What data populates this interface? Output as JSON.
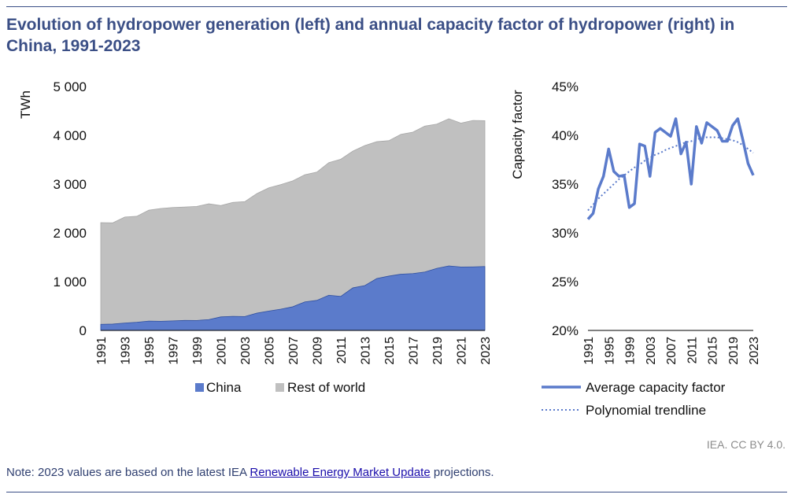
{
  "title": "Evolution of hydropower generation (left) and annual capacity factor of hydropower (right) in China, 1991-2023",
  "source": "IEA. CC BY 4.0.",
  "note": {
    "prefix": "Note: 2023 values are based on the latest IEA ",
    "link_text": "Renewable Energy Market Update",
    "suffix": " projections."
  },
  "colors": {
    "china": "#5b7bcb",
    "rest": "#c0c0c0",
    "line": "#5b7bcb",
    "title": "#3b4f86"
  },
  "chart_data": [
    {
      "type": "area",
      "stacked": true,
      "ylabel": "TWh",
      "ylim": [
        0,
        5000
      ],
      "yticks": [
        0,
        1000,
        2000,
        3000,
        4000,
        5000
      ],
      "ytick_labels": [
        "0",
        "1 000",
        "2 000",
        "3 000",
        "4 000",
        "5 000"
      ],
      "x": [
        1991,
        1992,
        1993,
        1994,
        1995,
        1996,
        1997,
        1998,
        1999,
        2000,
        2001,
        2002,
        2003,
        2004,
        2005,
        2006,
        2007,
        2008,
        2009,
        2010,
        2011,
        2012,
        2013,
        2014,
        2015,
        2016,
        2017,
        2018,
        2019,
        2020,
        2021,
        2022,
        2023
      ],
      "xtick_labels": [
        "1991",
        "1993",
        "1995",
        "1997",
        "1999",
        "2001",
        "2003",
        "2005",
        "2007",
        "2009",
        "2011",
        "2013",
        "2015",
        "2017",
        "2019",
        "2021",
        "2023"
      ],
      "legend": "bottom",
      "series": [
        {
          "name": "China",
          "values": [
            125,
            130,
            151,
            167,
            191,
            188,
            196,
            205,
            204,
            222,
            277,
            288,
            284,
            354,
            397,
            435,
            485,
            585,
            616,
            722,
            698,
            872,
            920,
            1064,
            1114,
            1153,
            1165,
            1198,
            1272,
            1322,
            1300,
            1303,
            1310
          ]
        },
        {
          "name": "Rest of world",
          "values": [
            2085,
            2075,
            2174,
            2173,
            2274,
            2312,
            2324,
            2325,
            2338,
            2374,
            2283,
            2337,
            2356,
            2451,
            2526,
            2555,
            2581,
            2606,
            2629,
            2718,
            2812,
            2803,
            2870,
            2806,
            2776,
            2867,
            2900,
            2992,
            2958,
            3018,
            2950,
            3002,
            2990
          ]
        }
      ]
    },
    {
      "type": "line",
      "ylabel": "Capacity factor",
      "ylim": [
        0.2,
        0.45
      ],
      "yticks": [
        0.2,
        0.25,
        0.3,
        0.35,
        0.4,
        0.45
      ],
      "ytick_labels": [
        "20%",
        "25%",
        "30%",
        "35%",
        "40%",
        "45%"
      ],
      "x": [
        1991,
        1992,
        1993,
        1994,
        1995,
        1996,
        1997,
        1998,
        1999,
        2000,
        2001,
        2002,
        2003,
        2004,
        2005,
        2006,
        2007,
        2008,
        2009,
        2010,
        2011,
        2012,
        2013,
        2014,
        2015,
        2016,
        2017,
        2018,
        2019,
        2020,
        2021,
        2022,
        2023
      ],
      "xtick_labels": [
        "1991",
        "1995",
        "1999",
        "2003",
        "2007",
        "2011",
        "2015",
        "2019",
        "2023"
      ],
      "legend": "bottom",
      "series": [
        {
          "name": "Average capacity factor",
          "style": "solid",
          "values": [
            0.314,
            0.32,
            0.345,
            0.358,
            0.386,
            0.363,
            0.358,
            0.359,
            0.326,
            0.33,
            0.391,
            0.389,
            0.358,
            0.403,
            0.407,
            0.403,
            0.399,
            0.417,
            0.381,
            0.393,
            0.35,
            0.409,
            0.392,
            0.413,
            0.409,
            0.405,
            0.394,
            0.394,
            0.41,
            0.417,
            0.395,
            0.371,
            0.359
          ]
        },
        {
          "name": "Polynomial trendline",
          "style": "dotted",
          "values": [
            0.323,
            0.329,
            0.335,
            0.34,
            0.345,
            0.35,
            0.355,
            0.359,
            0.363,
            0.367,
            0.37,
            0.374,
            0.377,
            0.38,
            0.382,
            0.385,
            0.387,
            0.389,
            0.391,
            0.393,
            0.394,
            0.396,
            0.397,
            0.398,
            0.398,
            0.398,
            0.397,
            0.396,
            0.395,
            0.393,
            0.39,
            0.386,
            0.382
          ]
        }
      ]
    }
  ]
}
